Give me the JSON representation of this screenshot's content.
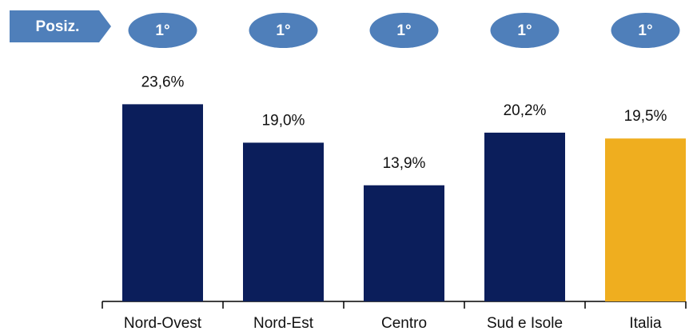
{
  "chart_data": {
    "type": "bar",
    "positions_label": "Posiz.",
    "positions": [
      "1°",
      "1°",
      "1°",
      "1°",
      "1°"
    ],
    "categories": [
      "Nord-Ovest",
      "Nord-Est",
      "Centro",
      "Sud e Isole",
      "Italia"
    ],
    "values": [
      23.6,
      19.0,
      13.9,
      20.2,
      19.5
    ],
    "value_labels": [
      "23,6%",
      "19,0%",
      "13,9%",
      "20,2%",
      "19,5%"
    ],
    "colors": [
      "#0b1e5b",
      "#0b1e5b",
      "#0b1e5b",
      "#0b1e5b",
      "#efae1f"
    ]
  }
}
